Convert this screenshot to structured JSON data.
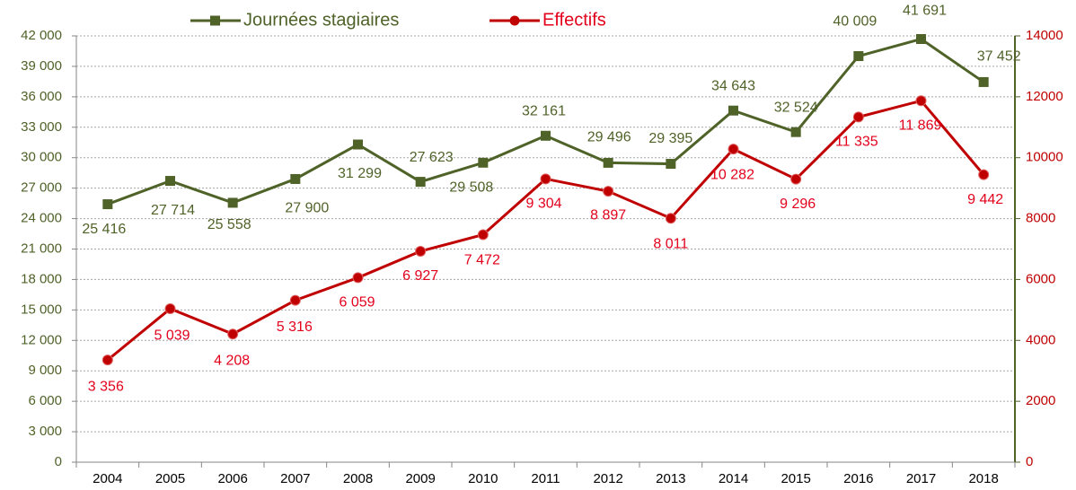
{
  "chart_data": {
    "type": "line",
    "categories": [
      "2004",
      "2005",
      "2006",
      "2007",
      "2008",
      "2009",
      "2010",
      "2011",
      "2012",
      "2013",
      "2014",
      "2015",
      "2016",
      "2017",
      "2018"
    ],
    "series": [
      {
        "name": "Journées stagiaires",
        "color": "#4f6228",
        "axis": "y",
        "values": [
          25416,
          27714,
          25558,
          27900,
          31299,
          27623,
          29508,
          32161,
          29496,
          29395,
          34643,
          32524,
          40009,
          41691,
          37452
        ],
        "value_labels": [
          "25 416",
          "27 714",
          "25 558",
          "27 900",
          "31 299",
          "27 623",
          "29 508",
          "32 161",
          "29 496",
          "29 395",
          "34 643",
          "32 524",
          "40 009",
          "41 691",
          "37 452"
        ]
      },
      {
        "name": "Effectifs",
        "color": "#c00000",
        "axis": "y2",
        "values": [
          3356,
          5039,
          4208,
          5316,
          6059,
          6927,
          7472,
          9304,
          8897,
          8011,
          10282,
          9296,
          11335,
          11869,
          9442
        ],
        "value_labels": [
          "3 356",
          "5 039",
          "4 208",
          "5 316",
          "6 059",
          "6 927",
          "7 472",
          "9 304",
          "8 897",
          "8 011",
          "10 282",
          "9 296",
          "11 335",
          "11 869",
          "9 442"
        ]
      }
    ],
    "ylim": [
      0,
      42000
    ],
    "yticks": [
      0,
      {
        "value": 3000,
        "label": "3 000"
      },
      {
        "value": 6000,
        "label": "6 000"
      },
      {
        "value": 9000,
        "label": "9 000"
      },
      {
        "value": 12000,
        "label": "12 000"
      },
      {
        "value": 15000,
        "label": "15 000"
      },
      {
        "value": 18000,
        "label": "18 000"
      },
      {
        "value": 21000,
        "label": "21 000"
      },
      {
        "value": 24000,
        "label": "24 000"
      },
      {
        "value": 27000,
        "label": "27 000"
      },
      {
        "value": 30000,
        "label": "30 000"
      },
      {
        "value": 33000,
        "label": "33 000"
      },
      {
        "value": 36000,
        "label": "36 000"
      },
      {
        "value": 39000,
        "label": "39 000"
      },
      {
        "value": 42000,
        "label": "42 000"
      }
    ],
    "y2lim": [
      0,
      14000
    ],
    "y2ticks": [
      0,
      2000,
      4000,
      6000,
      8000,
      10000,
      12000,
      14000
    ],
    "grid": true,
    "legend": "top"
  }
}
